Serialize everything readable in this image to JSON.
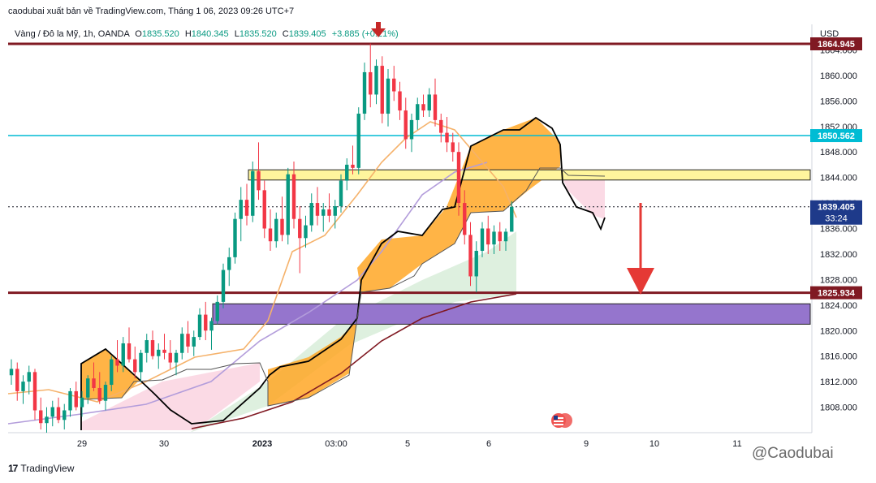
{
  "header": {
    "credit": "caodubai xuất bản về TradingView.com, Tháng 1 06, 2023 09:26 UTC+7"
  },
  "legend": {
    "symbol": "Vàng / Đô la Mỹ, 1h, OANDA",
    "open_label": "O",
    "open": "1835.520",
    "high_label": "H",
    "high": "1840.345",
    "low_label": "L",
    "low": "1835.520",
    "close_label": "C",
    "close": "1839.405",
    "change": "+3.885 (+0.21%)"
  },
  "currency": "USD",
  "footer": {
    "logo_mark": "17",
    "logo_text": "TradingView"
  },
  "watermark": "@Caodubai",
  "colors": {
    "up": "#089981",
    "down": "#f23645",
    "resistance": "#801922",
    "cyan_level": "#00bcd4",
    "yellow_zone": "#fff59d",
    "purple_zone": "#9575cd",
    "cloud_bull": "#ffa726",
    "cloud_bear": "#f8bbd0",
    "cloud_green": "#c8e6c9",
    "ma_fast": "#f5b26b",
    "ma_mid": "#b39ddb",
    "ma_slow": "#801922",
    "arrow": "#e53935"
  },
  "chart_data": {
    "type": "candlestick",
    "symbol": "XAUUSD",
    "timeframe": "1h",
    "ylim": [
      1804,
      1868
    ],
    "y_ticks": [
      "1808.000",
      "1812.000",
      "1816.000",
      "1820.000",
      "1824.000",
      "1828.000",
      "1832.000",
      "1836.000",
      "1840.000",
      "1844.000",
      "1848.000",
      "1852.000",
      "1856.000",
      "1860.000",
      "1864.000"
    ],
    "x_ticks": [
      "29",
      "30",
      "2023",
      "03:00",
      "5",
      "6",
      "9",
      "10",
      "11"
    ],
    "price_labels": [
      {
        "name": "resistance-top",
        "value": 1864.945,
        "text": "1864.945"
      },
      {
        "name": "cyan-level",
        "value": 1850.562,
        "text": "1850.562"
      },
      {
        "name": "last-price",
        "value": 1839.405,
        "text": "1839.405",
        "sub": "33:24"
      },
      {
        "name": "support",
        "value": 1825.934,
        "text": "1825.934"
      }
    ],
    "zones": [
      {
        "name": "yellow-zone",
        "from": 1843.6,
        "to": 1845.2
      },
      {
        "name": "purple-zone",
        "from": 1821.0,
        "to": 1824.2
      }
    ],
    "ohlc": [
      [
        1813.0,
        1815.5,
        1811.5,
        1814.0
      ],
      [
        1814.0,
        1815.0,
        1809.0,
        1810.5
      ],
      [
        1810.5,
        1813.0,
        1808.5,
        1812.0
      ],
      [
        1812.0,
        1814.5,
        1810.0,
        1813.5
      ],
      [
        1813.5,
        1814.0,
        1806.0,
        1807.5
      ],
      [
        1807.5,
        1809.5,
        1804.5,
        1805.5
      ],
      [
        1805.5,
        1808.0,
        1804.0,
        1806.5
      ],
      [
        1806.5,
        1809.0,
        1805.0,
        1808.0
      ],
      [
        1808.0,
        1809.5,
        1805.5,
        1806.0
      ],
      [
        1806.0,
        1808.5,
        1804.5,
        1807.5
      ],
      [
        1807.5,
        1811.0,
        1806.5,
        1810.5
      ],
      [
        1810.5,
        1812.0,
        1807.5,
        1808.0
      ],
      [
        1808.0,
        1810.5,
        1806.5,
        1809.5
      ],
      [
        1809.5,
        1813.0,
        1808.5,
        1812.5
      ],
      [
        1812.5,
        1815.0,
        1810.5,
        1811.0
      ],
      [
        1811.0,
        1813.5,
        1808.5,
        1809.0
      ],
      [
        1809.0,
        1812.0,
        1807.5,
        1811.5
      ],
      [
        1811.5,
        1816.0,
        1810.5,
        1815.5
      ],
      [
        1815.5,
        1818.5,
        1813.5,
        1814.5
      ],
      [
        1814.5,
        1819.0,
        1813.5,
        1818.0
      ],
      [
        1818.0,
        1820.5,
        1815.0,
        1815.5
      ],
      [
        1815.5,
        1817.5,
        1812.5,
        1813.5
      ],
      [
        1813.5,
        1817.0,
        1812.0,
        1816.5
      ],
      [
        1816.5,
        1819.5,
        1815.0,
        1818.5
      ],
      [
        1818.5,
        1820.0,
        1815.5,
        1816.0
      ],
      [
        1816.0,
        1818.0,
        1814.0,
        1817.0
      ],
      [
        1817.0,
        1819.5,
        1815.5,
        1816.5
      ],
      [
        1816.5,
        1818.5,
        1814.0,
        1815.0
      ],
      [
        1815.0,
        1817.0,
        1813.0,
        1816.5
      ],
      [
        1816.5,
        1820.5,
        1815.5,
        1819.5
      ],
      [
        1819.5,
        1821.5,
        1816.5,
        1817.5
      ],
      [
        1817.5,
        1820.0,
        1816.0,
        1819.0
      ],
      [
        1819.0,
        1823.5,
        1818.5,
        1822.5
      ],
      [
        1822.5,
        1824.5,
        1818.5,
        1820.0
      ],
      [
        1820.0,
        1822.0,
        1817.0,
        1821.5
      ],
      [
        1821.5,
        1825.5,
        1821.0,
        1824.5
      ],
      [
        1824.5,
        1830.5,
        1823.5,
        1829.5
      ],
      [
        1829.5,
        1833.0,
        1827.0,
        1831.5
      ],
      [
        1831.5,
        1838.5,
        1830.5,
        1837.5
      ],
      [
        1837.5,
        1842.5,
        1834.0,
        1840.5
      ],
      [
        1840.5,
        1843.0,
        1836.5,
        1838.0
      ],
      [
        1838.0,
        1846.5,
        1837.0,
        1845.0
      ],
      [
        1845.0,
        1849.5,
        1840.5,
        1842.0
      ],
      [
        1842.0,
        1843.5,
        1834.5,
        1836.0
      ],
      [
        1836.0,
        1839.0,
        1832.5,
        1834.0
      ],
      [
        1834.0,
        1838.5,
        1833.0,
        1837.5
      ],
      [
        1837.5,
        1841.0,
        1834.0,
        1835.0
      ],
      [
        1835.0,
        1845.5,
        1833.5,
        1844.5
      ],
      [
        1844.5,
        1846.5,
        1836.0,
        1837.5
      ],
      [
        1837.5,
        1839.5,
        1829.0,
        1834.5
      ],
      [
        1834.5,
        1838.0,
        1833.0,
        1836.5
      ],
      [
        1836.5,
        1841.5,
        1835.5,
        1840.0
      ],
      [
        1840.0,
        1842.5,
        1836.5,
        1838.0
      ],
      [
        1838.0,
        1840.0,
        1835.5,
        1839.0
      ],
      [
        1839.0,
        1841.5,
        1837.0,
        1838.0
      ],
      [
        1838.0,
        1840.5,
        1836.0,
        1839.5
      ],
      [
        1839.5,
        1844.5,
        1838.5,
        1843.5
      ],
      [
        1843.5,
        1847.0,
        1842.0,
        1846.0
      ],
      [
        1846.0,
        1849.0,
        1844.5,
        1845.5
      ],
      [
        1845.5,
        1855.0,
        1844.5,
        1854.0
      ],
      [
        1854.0,
        1862.0,
        1853.0,
        1860.5
      ],
      [
        1860.5,
        1865.0,
        1855.0,
        1857.0
      ],
      [
        1857.0,
        1862.5,
        1855.5,
        1861.5
      ],
      [
        1861.5,
        1863.0,
        1852.5,
        1854.0
      ],
      [
        1854.0,
        1861.0,
        1852.0,
        1859.5
      ],
      [
        1859.5,
        1861.5,
        1856.0,
        1857.5
      ],
      [
        1857.5,
        1859.0,
        1853.0,
        1854.5
      ],
      [
        1854.5,
        1856.5,
        1848.5,
        1850.0
      ],
      [
        1850.0,
        1854.0,
        1848.0,
        1853.0
      ],
      [
        1853.0,
        1856.5,
        1851.5,
        1855.5
      ],
      [
        1855.5,
        1857.0,
        1853.5,
        1854.5
      ],
      [
        1854.5,
        1858.0,
        1853.5,
        1857.0
      ],
      [
        1857.0,
        1859.5,
        1852.0,
        1853.0
      ],
      [
        1853.0,
        1854.0,
        1849.5,
        1851.0
      ],
      [
        1851.0,
        1853.5,
        1848.0,
        1849.5
      ],
      [
        1849.5,
        1851.0,
        1846.5,
        1848.0
      ],
      [
        1848.0,
        1849.5,
        1838.0,
        1840.0
      ],
      [
        1840.0,
        1842.0,
        1833.5,
        1835.0
      ],
      [
        1835.0,
        1837.0,
        1827.0,
        1828.5
      ],
      [
        1828.5,
        1834.0,
        1826.0,
        1832.5
      ],
      [
        1832.5,
        1837.0,
        1831.5,
        1836.0
      ],
      [
        1836.0,
        1838.0,
        1832.0,
        1833.5
      ],
      [
        1833.5,
        1836.5,
        1832.0,
        1835.5
      ],
      [
        1835.5,
        1837.0,
        1832.5,
        1834.0
      ],
      [
        1834.0,
        1836.0,
        1832.5,
        1835.5
      ],
      [
        1835.5,
        1840.3,
        1835.5,
        1839.4
      ]
    ]
  }
}
